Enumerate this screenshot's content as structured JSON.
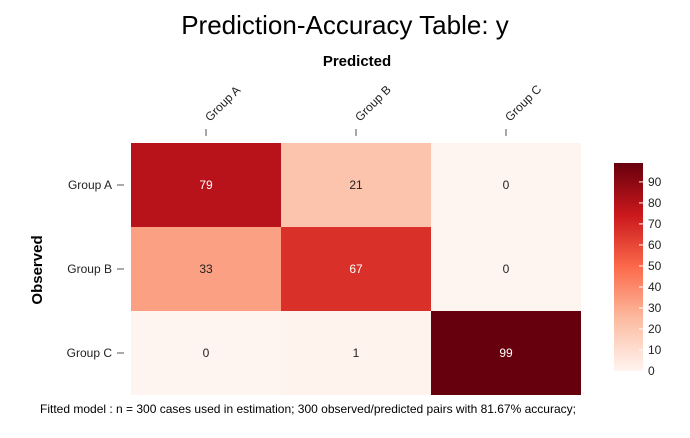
{
  "chart_data": {
    "type": "heatmap",
    "title": "Prediction-Accuracy Table: y",
    "xlabel": "Predicted",
    "ylabel": "Observed",
    "x_categories": [
      "Group A",
      "Group B",
      "Group C"
    ],
    "y_categories": [
      "Group A",
      "Group B",
      "Group C"
    ],
    "values": [
      [
        79,
        21,
        0
      ],
      [
        33,
        67,
        0
      ],
      [
        0,
        1,
        99
      ]
    ],
    "colorbar": {
      "ticks": [
        0,
        10,
        20,
        30,
        40,
        50,
        60,
        70,
        80,
        90
      ],
      "range": [
        0,
        99
      ],
      "colors": [
        "#fff5f0",
        "#fcbba1",
        "#fb6a4a",
        "#cb181d",
        "#67000d"
      ]
    },
    "footer": "Fitted model : n = 300 cases used in estimation; 300 observed/predicted pairs with 81.67% accuracy;"
  }
}
